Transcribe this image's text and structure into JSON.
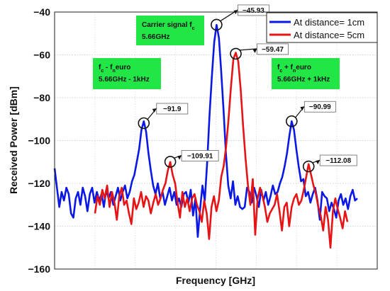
{
  "chart_data": {
    "type": "line",
    "xlabel": "Frequency [GHz]",
    "ylabel": "Received Power [dBm]",
    "ylim": [
      -160,
      -40
    ],
    "yticks": [
      -40,
      -60,
      -80,
      -100,
      -120,
      -140,
      -160
    ],
    "ytick_labels": [
      "−40",
      "−60",
      "−80",
      "−100",
      "−120",
      "−140",
      "−160"
    ],
    "x_tick_labels": "none",
    "grid": true,
    "legend_position": "top-right",
    "series": [
      {
        "name": "At distance= 1cm",
        "color": "#0a18e6",
        "values": [
          -113,
          -122,
          -131,
          -124,
          -128,
          -122,
          -125,
          -134,
          -136,
          -127,
          -124,
          -130,
          -122,
          -126,
          -133,
          -125,
          -122,
          -129,
          -124,
          -128,
          -125,
          -131,
          -123,
          -127,
          -124,
          -130,
          -126,
          -122,
          -128,
          -124,
          -121,
          -127,
          -124,
          -119,
          -116,
          -110,
          -104,
          -95,
          -91,
          -96,
          -106,
          -114,
          -121,
          -125,
          -120,
          -127,
          -124,
          -130,
          -126,
          -122,
          -128,
          -124,
          -130,
          -127,
          -131,
          -125,
          -124,
          -129,
          -123,
          -135,
          -127,
          -145,
          -132,
          -121,
          -128,
          -110,
          -88,
          -70,
          -54,
          -46,
          -52,
          -68,
          -86,
          -106,
          -121,
          -127,
          -119,
          -130,
          -126,
          -131,
          -132,
          -131,
          -122,
          -124,
          -129,
          -122,
          -126,
          -131,
          -123,
          -128,
          -124,
          -130,
          -126,
          -121,
          -125,
          -124,
          -120,
          -117,
          -112,
          -106,
          -98,
          -91,
          -95,
          -104,
          -112,
          -119,
          -118,
          -126,
          -124,
          -129,
          -125,
          -122,
          -128,
          -137,
          -124,
          -126,
          -127,
          -133,
          -129,
          -132,
          -136,
          -128,
          -125,
          -130,
          -127,
          -132,
          -126,
          -123,
          -128,
          -127
        ]
      },
      {
        "name": "At distance= 5cm",
        "color": "#e61414",
        "values": [
          -134,
          -126,
          -130,
          -123,
          -127,
          -121,
          -131,
          -124,
          -129,
          -137,
          -126,
          -122,
          -130,
          -128,
          -134,
          -139,
          -127,
          -132,
          -129,
          -124,
          -131,
          -126,
          -128,
          -134,
          -129,
          -125,
          -130,
          -127,
          -123,
          -120,
          -114,
          -110,
          -116,
          -120,
          -129,
          -136,
          -124,
          -131,
          -127,
          -133,
          -127,
          -125,
          -130,
          -133,
          -138,
          -128,
          -134,
          -146,
          -131,
          -126,
          -133,
          -128,
          -117,
          -112,
          -103,
          -90,
          -75,
          -62,
          -59,
          -63,
          -76,
          -93,
          -108,
          -121,
          -130,
          -118,
          -144,
          -127,
          -122,
          -126,
          -131,
          -138,
          -134,
          -132,
          -130,
          -125,
          -133,
          -142,
          -131,
          -129,
          -140,
          -131,
          -127,
          -125,
          -130,
          -128,
          -123,
          -117,
          -111,
          -116,
          -121,
          -125,
          -131,
          -135,
          -142,
          -131,
          -137,
          -150,
          -133,
          -127,
          -132,
          -136,
          -141,
          -133,
          -138
        ]
      }
    ],
    "annotations": [
      {
        "label": "−45.93",
        "at_series": 0,
        "at_index": 69,
        "value": -45.93
      },
      {
        "label": "−59.47",
        "at_series": 1,
        "at_index": 58,
        "value": -59.47
      },
      {
        "label": "−91.9",
        "at_series": 0,
        "at_index": 38,
        "value": -91.9
      },
      {
        "label": "−109.91",
        "at_series": 1,
        "at_index": 31,
        "value": -109.91
      },
      {
        "label": "−90.99",
        "at_series": 0,
        "at_index": 101,
        "value": -90.99
      },
      {
        "label": "−112.08",
        "at_series": 1,
        "at_index": 88,
        "value": -112.08
      }
    ],
    "text_boxes": [
      {
        "line1_main": "Carrier signal f",
        "line1_sub": "c",
        "line2": "5.66GHz",
        "color": "#22e645"
      },
      {
        "line1_main": "f",
        "line1_sub": "c",
        "line1_mid": " - f",
        "line1_sub2": "n",
        "line1_tail": "euro",
        "line2": "5.66GHz - 1kHz",
        "color": "#22e645"
      },
      {
        "line1_main": "f",
        "line1_sub": "c",
        "line1_mid": " + f",
        "line1_sub2": "n",
        "line1_tail": "euro",
        "line2": "5.66GHz + 1kHz",
        "color": "#22e645"
      }
    ]
  }
}
